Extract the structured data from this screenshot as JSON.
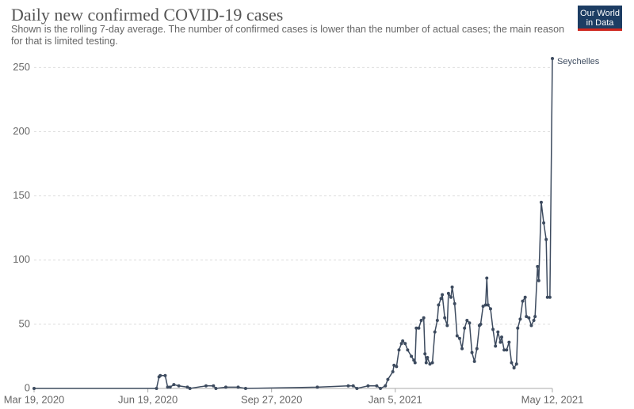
{
  "logo": {
    "line1": "Our World",
    "line2": "in Data"
  },
  "chart_data": {
    "type": "line",
    "title": "Daily new confirmed COVID-19 cases",
    "subtitle": "Shown is the rolling 7-day average. The number of confirmed cases is lower than the number of actual cases; the main reason for that is limited testing.",
    "x": [
      "2020-03-19",
      "2020-06-26",
      "2020-06-28",
      "2020-06-29",
      "2020-07-03",
      "2020-07-05",
      "2020-07-07",
      "2020-07-10",
      "2020-07-14",
      "2020-07-21",
      "2020-07-23",
      "2020-08-05",
      "2020-08-11",
      "2020-08-13",
      "2020-08-21",
      "2020-08-31",
      "2020-09-06",
      "2020-11-03",
      "2020-11-28",
      "2020-12-02",
      "2020-12-05",
      "2020-12-14",
      "2020-12-21",
      "2020-12-24",
      "2020-12-28",
      "2020-12-30",
      "2021-01-03",
      "2021-01-04",
      "2021-01-06",
      "2021-01-08",
      "2021-01-10",
      "2021-01-11",
      "2021-01-13",
      "2021-01-15",
      "2021-01-18",
      "2021-01-20",
      "2021-01-21",
      "2021-01-22",
      "2021-01-24",
      "2021-01-26",
      "2021-01-28",
      "2021-01-29",
      "2021-01-30",
      "2021-01-31",
      "2021-02-02",
      "2021-02-04",
      "2021-02-06",
      "2021-02-08",
      "2021-02-09",
      "2021-02-11",
      "2021-02-12",
      "2021-02-14",
      "2021-02-16",
      "2021-02-17",
      "2021-02-19",
      "2021-02-20",
      "2021-02-22",
      "2021-02-24",
      "2021-02-26",
      "2021-02-28",
      "2021-03-02",
      "2021-03-04",
      "2021-03-06",
      "2021-03-08",
      "2021-03-10",
      "2021-03-12",
      "2021-03-14",
      "2021-03-15",
      "2021-03-17",
      "2021-03-19",
      "2021-03-20",
      "2021-03-21",
      "2021-03-23",
      "2021-03-25",
      "2021-03-27",
      "2021-03-29",
      "2021-03-31",
      "2021-04-01",
      "2021-04-03",
      "2021-04-05",
      "2021-04-07",
      "2021-04-09",
      "2021-04-11",
      "2021-04-13",
      "2021-04-14",
      "2021-04-16",
      "2021-04-18",
      "2021-04-20",
      "2021-04-21",
      "2021-04-23",
      "2021-04-25",
      "2021-04-27",
      "2021-04-28",
      "2021-04-30",
      "2021-05-01",
      "2021-05-03",
      "2021-05-05",
      "2021-05-07",
      "2021-05-08",
      "2021-05-10",
      "2021-05-12"
    ],
    "series": [
      {
        "name": "Seychelles",
        "color": "#3d4b5f",
        "values": [
          0,
          0,
          9,
          10,
          10,
          1,
          1,
          3,
          2,
          1,
          0,
          2,
          2,
          0,
          1,
          1,
          0,
          1,
          2,
          2,
          0,
          2,
          2,
          0,
          2,
          7,
          13,
          18,
          17,
          30,
          35,
          37,
          35,
          30,
          25,
          22,
          20,
          47,
          47,
          53,
          55,
          27,
          20,
          24,
          19,
          20,
          44,
          53,
          65,
          70,
          73,
          55,
          49,
          74,
          71,
          79,
          66,
          41,
          39,
          31,
          47,
          53,
          51,
          28,
          21,
          31,
          49,
          50,
          64,
          65,
          86,
          65,
          62,
          46,
          33,
          44,
          36,
          40,
          30,
          30,
          36,
          20,
          16,
          19,
          47,
          54,
          68,
          71,
          56,
          55,
          49,
          53,
          56,
          95,
          84,
          145,
          129,
          116,
          71,
          71,
          257
        ]
      }
    ],
    "xlim": [
      "2020-03-19",
      "2021-05-12"
    ],
    "xticks": [
      {
        "value": "2020-03-19",
        "label": "Mar 19, 2020"
      },
      {
        "value": "2020-06-19",
        "label": "Jun 19, 2020"
      },
      {
        "value": "2020-09-27",
        "label": "Sep 27, 2020"
      },
      {
        "value": "2021-01-05",
        "label": "Jan 5, 2021"
      },
      {
        "value": "2021-05-12",
        "label": "May 12, 2021"
      }
    ],
    "ylim": [
      0,
      257
    ],
    "yticks": [
      0,
      50,
      100,
      150,
      200,
      250
    ],
    "grid": true
  }
}
